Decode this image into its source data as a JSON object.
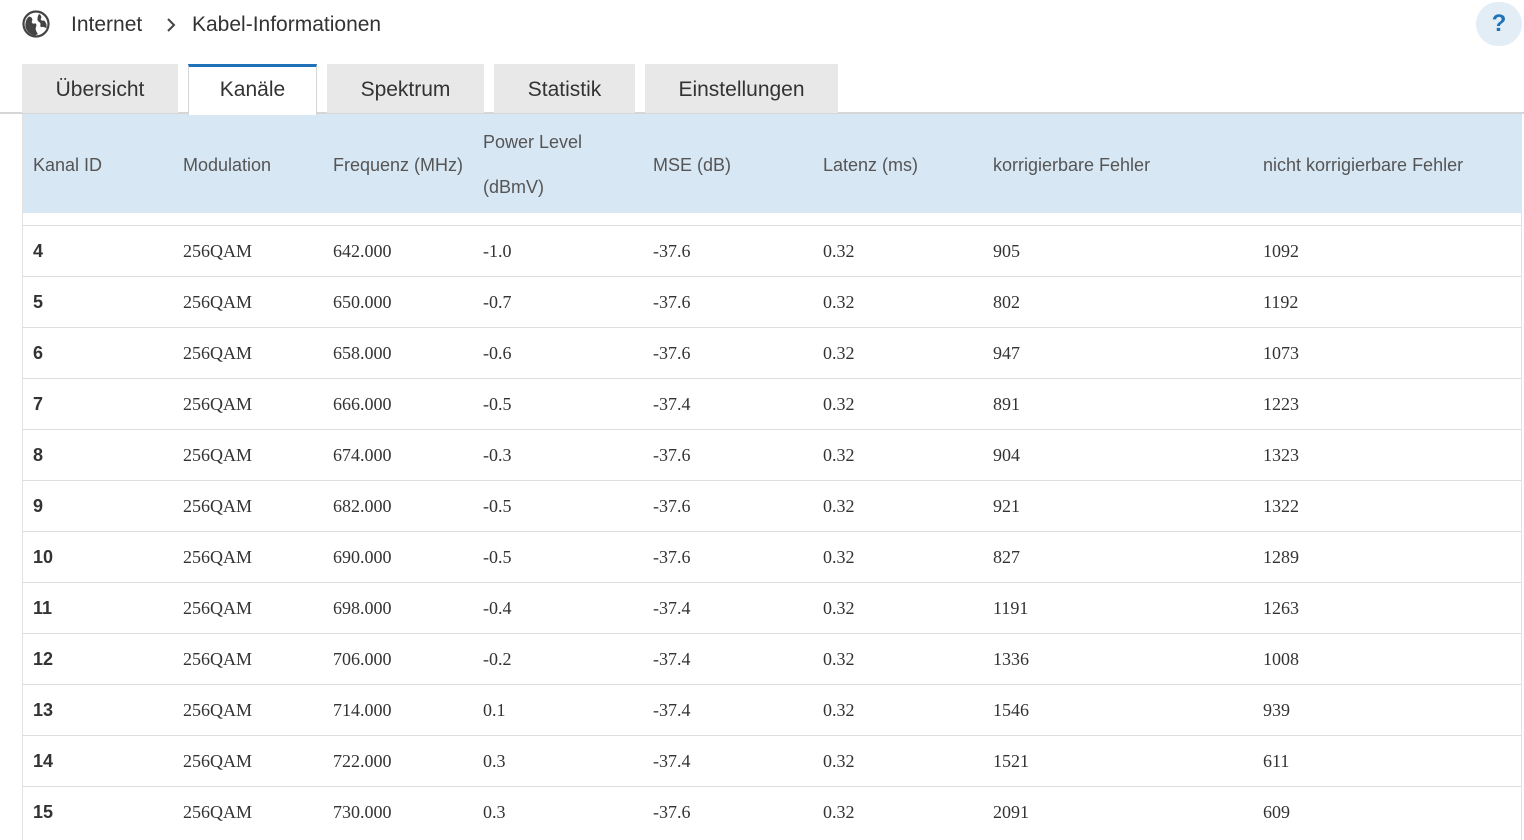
{
  "breadcrumb": {
    "home_icon": "globe-icon",
    "section": "Internet",
    "separator_icon": "chevron-right-icon",
    "page": "Kabel-Informationen"
  },
  "help": {
    "label": "?"
  },
  "tabs": [
    {
      "label": "Übersicht",
      "active": false
    },
    {
      "label": "Kanäle",
      "active": true
    },
    {
      "label": "Spektrum",
      "active": false
    },
    {
      "label": "Statistik",
      "active": false
    },
    {
      "label": "Einstellungen",
      "active": false
    }
  ],
  "colors": {
    "accent": "#1f72b8",
    "header_bg": "#d8e7f4",
    "tab_bg": "#e8e8e8"
  },
  "table": {
    "columns": {
      "kanal_id": "Kanal ID",
      "modulation": "Modulation",
      "frequenz": "Frequenz (MHz)",
      "power_level_1": "Power Level",
      "power_level_2": "(dBmV)",
      "mse": "MSE (dB)",
      "latenz": "Latenz (ms)",
      "korrigierbar": "korrigierbare Fehler",
      "nicht_korrigierbar": "nicht korrigierbare Fehler"
    },
    "rows": [
      [
        "4",
        "256QAM",
        "642.000",
        "-1.0",
        "-37.6",
        "0.32",
        "905",
        "1092"
      ],
      [
        "5",
        "256QAM",
        "650.000",
        "-0.7",
        "-37.6",
        "0.32",
        "802",
        "1192"
      ],
      [
        "6",
        "256QAM",
        "658.000",
        "-0.6",
        "-37.6",
        "0.32",
        "947",
        "1073"
      ],
      [
        "7",
        "256QAM",
        "666.000",
        "-0.5",
        "-37.4",
        "0.32",
        "891",
        "1223"
      ],
      [
        "8",
        "256QAM",
        "674.000",
        "-0.3",
        "-37.6",
        "0.32",
        "904",
        "1323"
      ],
      [
        "9",
        "256QAM",
        "682.000",
        "-0.5",
        "-37.6",
        "0.32",
        "921",
        "1322"
      ],
      [
        "10",
        "256QAM",
        "690.000",
        "-0.5",
        "-37.6",
        "0.32",
        "827",
        "1289"
      ],
      [
        "11",
        "256QAM",
        "698.000",
        "-0.4",
        "-37.4",
        "0.32",
        "1191",
        "1263"
      ],
      [
        "12",
        "256QAM",
        "706.000",
        "-0.2",
        "-37.4",
        "0.32",
        "1336",
        "1008"
      ],
      [
        "13",
        "256QAM",
        "714.000",
        "0.1",
        "-37.4",
        "0.32",
        "1546",
        "939"
      ],
      [
        "14",
        "256QAM",
        "722.000",
        "0.3",
        "-37.4",
        "0.32",
        "1521",
        "611"
      ],
      [
        "15",
        "256QAM",
        "730.000",
        "0.3",
        "-37.6",
        "0.32",
        "2091",
        "609"
      ]
    ]
  }
}
